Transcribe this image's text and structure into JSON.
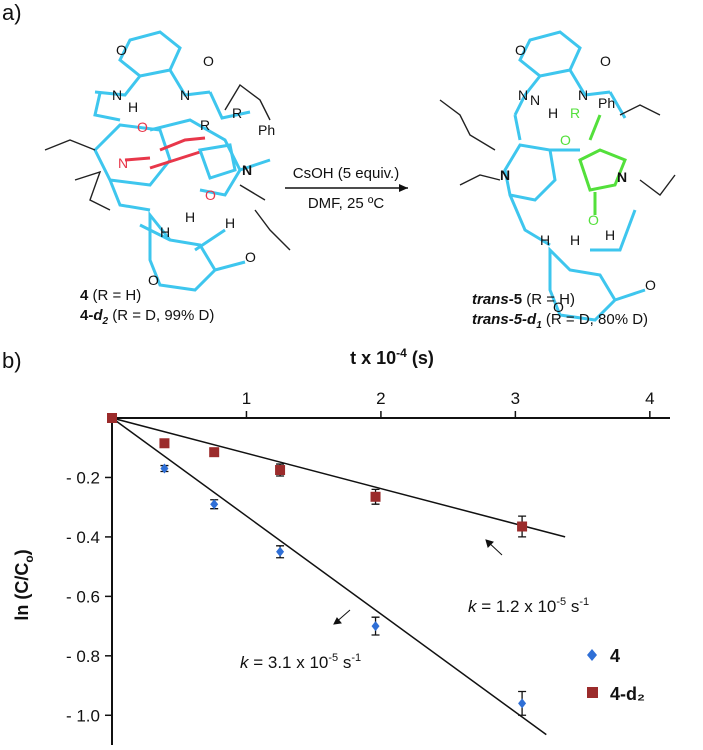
{
  "scheme": {
    "panel_a": "a)",
    "panel_b": "b)",
    "reagent": "CsOH (5 equiv.)",
    "conditions": "DMF, 25 ºC",
    "left_atoms": [
      "O",
      "O",
      "O",
      "O",
      "N",
      "N",
      "O",
      "O",
      "N",
      "H",
      "H",
      "R",
      "R",
      "Ph",
      "H",
      "H",
      "N"
    ],
    "right_atoms": [
      "O",
      "O",
      "O",
      "O",
      "N",
      "N",
      "O",
      "O",
      "N",
      "H",
      "H",
      "R",
      "Ph",
      "H",
      "H",
      "N",
      "N"
    ],
    "left_label_1": [
      "4",
      " (R = H)"
    ],
    "left_label_2": [
      "4-",
      "d",
      "2",
      " (R = D, 99% D)"
    ],
    "right_label_1": [
      "trans",
      "-",
      "5",
      " (R = H)"
    ],
    "right_label_2": [
      "trans",
      "-",
      "5-d",
      "1",
      " (R = D, 80% D)"
    ]
  },
  "chart_data": {
    "type": "scatter",
    "x_label": [
      "t x 10",
      "-4",
      " (s)"
    ],
    "y_label": [
      "ln (C/C",
      "o",
      ")"
    ],
    "xlim": [
      0,
      4.15
    ],
    "ylim": [
      -1.1,
      0
    ],
    "xticks": [
      1,
      2,
      3,
      4
    ],
    "yticks": [
      {
        "value": -0.2,
        "label": "- 0.2"
      },
      {
        "value": -0.4,
        "label": "- 0.4"
      },
      {
        "value": -0.6,
        "label": "- 0.6"
      },
      {
        "value": -0.8,
        "label": "- 0.8"
      },
      {
        "value": -1.0,
        "label": "- 1.0"
      }
    ],
    "series": [
      {
        "name": "4",
        "color": "#2f6fd6",
        "marker": "diamond",
        "x": [
          0,
          0.39,
          0.76,
          1.25,
          1.96,
          3.05
        ],
        "values": [
          0,
          -0.17,
          -0.29,
          -0.45,
          -0.7,
          -0.96
        ],
        "errors": [
          0,
          0.01,
          0.015,
          0.02,
          0.03,
          0.04
        ]
      },
      {
        "name": "4-d₂",
        "color": "#9b2b2b",
        "marker": "square",
        "x": [
          0,
          0.39,
          0.76,
          1.25,
          1.96,
          3.05
        ],
        "values": [
          0,
          -0.085,
          -0.115,
          -0.175,
          -0.265,
          -0.365
        ],
        "errors": [
          0,
          0.01,
          0.01,
          0.02,
          0.025,
          0.035
        ]
      }
    ],
    "fits": [
      {
        "x": [
          0,
          3.23
        ],
        "y": [
          0,
          -1.065
        ]
      },
      {
        "x": [
          0,
          3.37
        ],
        "y": [
          0,
          -0.4
        ]
      }
    ],
    "annotations": [
      [
        "k",
        " = 3.1 x 10",
        "-5",
        " s",
        "-1"
      ],
      [
        "k",
        " = 1.2 x 10",
        "-5",
        " s",
        "-1"
      ]
    ]
  }
}
